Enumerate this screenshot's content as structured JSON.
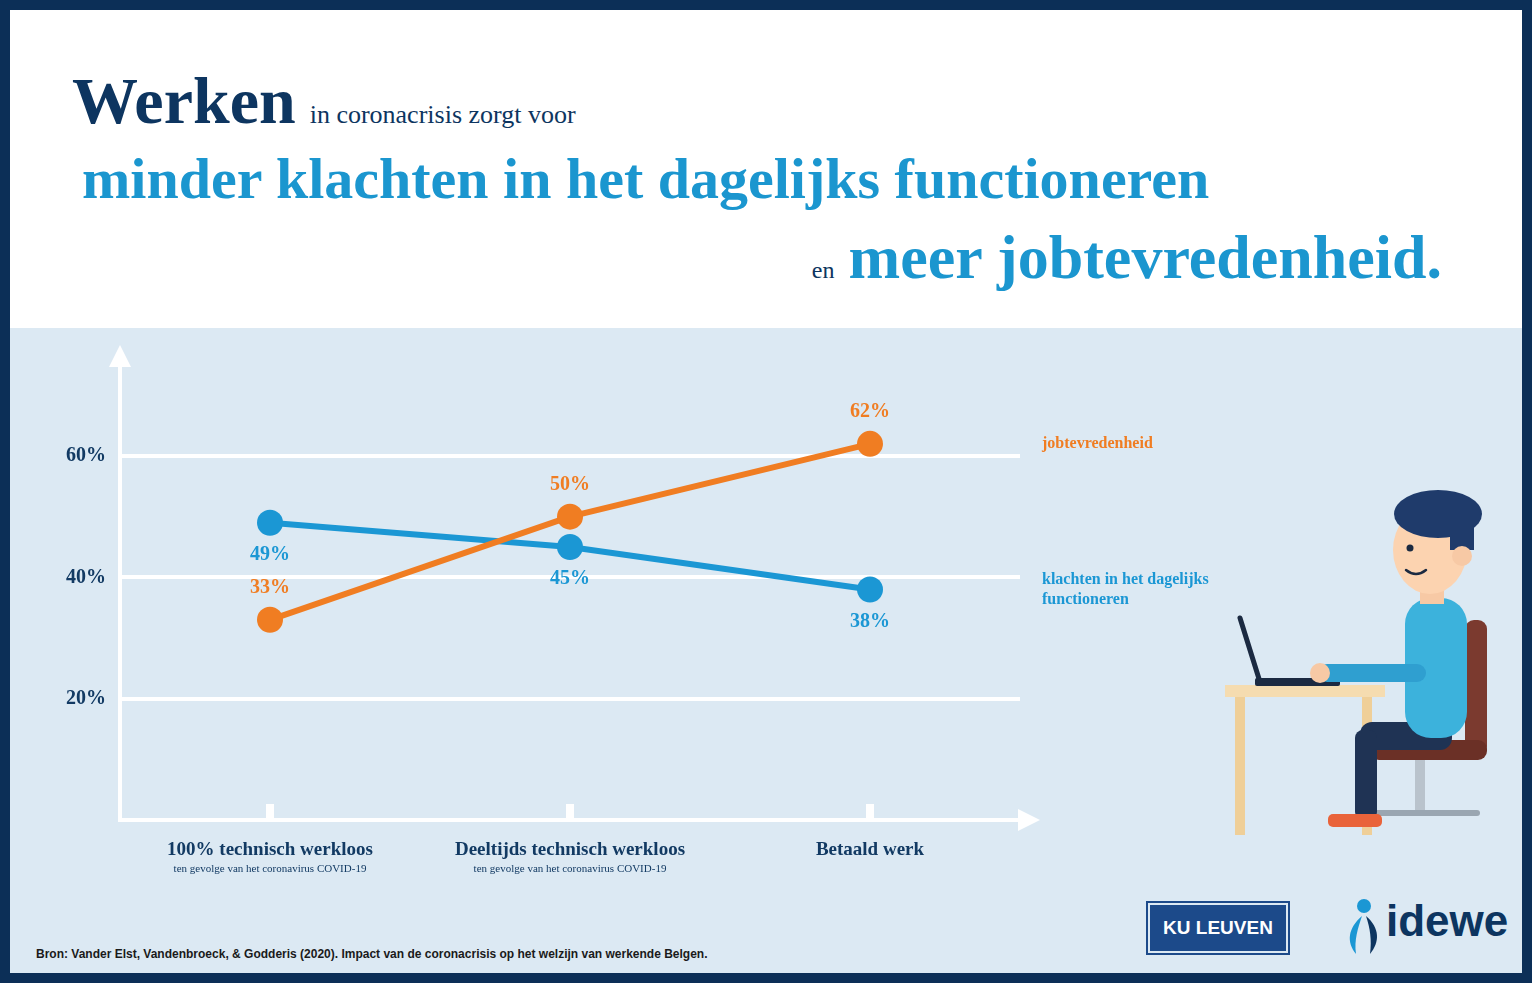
{
  "header": {
    "title_lead": "Werken",
    "title_lead_rest": "in coronacrisis zorgt voor",
    "title_main": "minder klachten in het dagelijks functioneren",
    "title_join": "en",
    "title_end": "meer jobtevredenheid."
  },
  "chart_data": {
    "type": "line",
    "categories": [
      "100% technisch werkloos",
      "Deeltijds technisch werkloos",
      "Betaald werk"
    ],
    "category_notes": [
      "ten gevolge van het coronavirus COVID-19",
      "ten gevolge van het coronavirus COVID-19",
      null
    ],
    "series": [
      {
        "name": "jobtevredenheid",
        "color": "#f07d22",
        "marker": "circle",
        "line_style": "solid",
        "values": [
          33,
          50,
          62
        ],
        "value_labels": [
          "33%",
          "50%",
          "62%"
        ]
      },
      {
        "name": "klachten in het dagelijks functioneren",
        "color": "#1b97d4",
        "marker": "circle",
        "line_style": "solid",
        "values": [
          49,
          45,
          38
        ],
        "value_labels": [
          "49%",
          "45%",
          "38%"
        ]
      }
    ],
    "ylim": [
      0,
      75
    ],
    "yticks": [
      {
        "value": 20,
        "label": "20%"
      },
      {
        "value": 40,
        "label": "40%"
      },
      {
        "value": 60,
        "label": "60%"
      }
    ],
    "grid": true,
    "data_labels": true,
    "legend": "right"
  },
  "footer": {
    "source": "Bron: Vander Elst, Vandenbroeck, & Godderis (2020). Impact van de coronacrisis op het welzijn van werkende Belgen.",
    "logos": [
      "KU LEUVEN",
      "idewe"
    ]
  }
}
